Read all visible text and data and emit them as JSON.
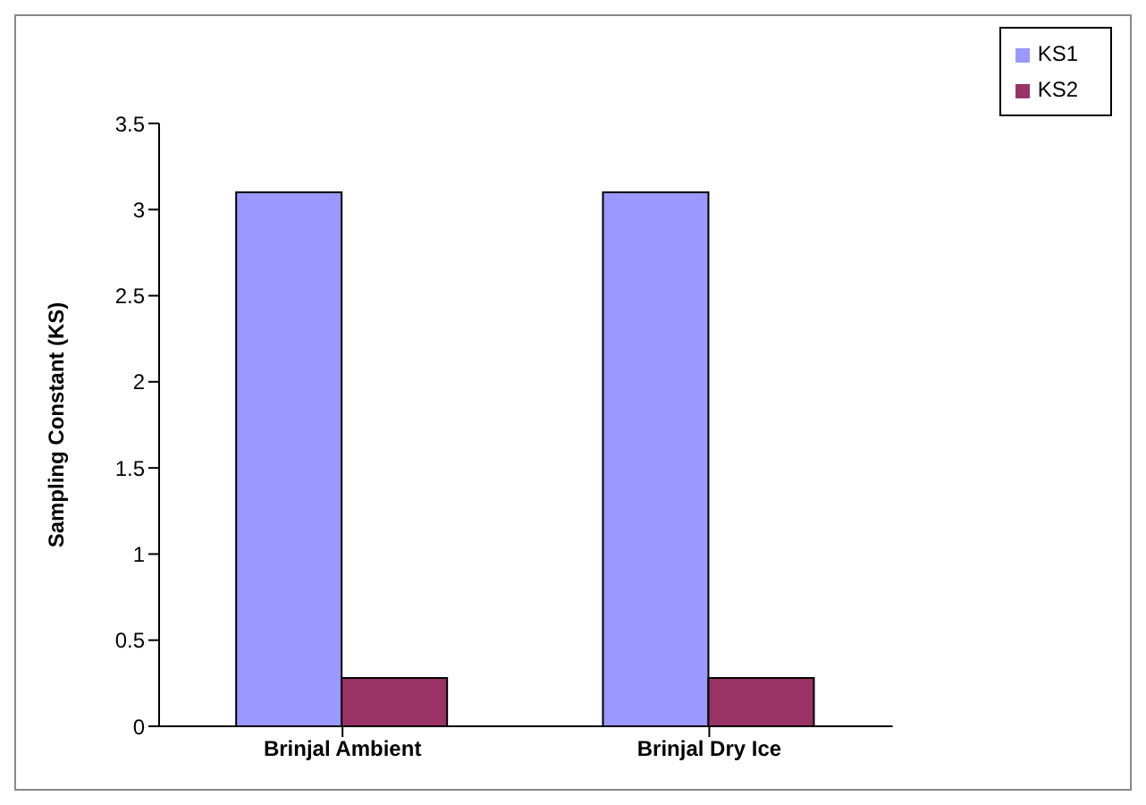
{
  "chart_data": {
    "type": "bar",
    "ylabel": "Sampling Constant  (KS)",
    "categories": [
      "Brinjal Ambient",
      "Brinjal Dry Ice"
    ],
    "series": [
      {
        "name": "KS1",
        "color": "#9999ff",
        "values": [
          3.1,
          3.1
        ]
      },
      {
        "name": "KS2",
        "color": "#993366",
        "values": [
          0.28,
          0.28
        ]
      }
    ],
    "ylim": [
      0,
      3.5
    ],
    "yticks": [
      0,
      0.5,
      1,
      1.5,
      2,
      2.5,
      3,
      3.5
    ],
    "grid": false,
    "legend": "top right"
  }
}
